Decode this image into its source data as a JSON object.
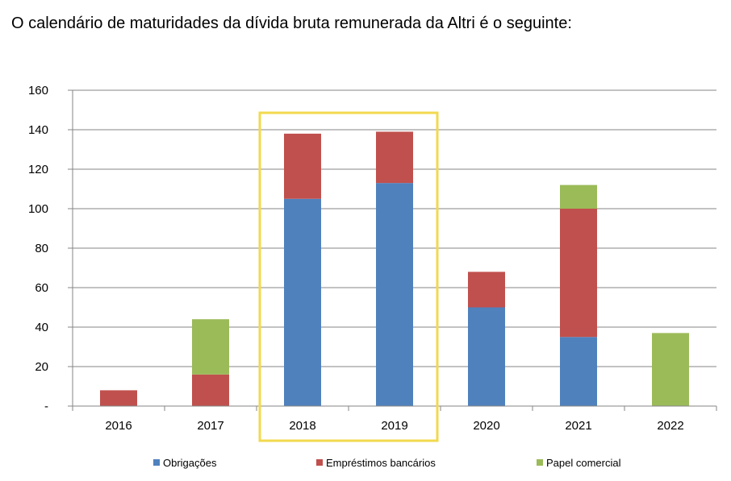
{
  "intro_text": "O calendário de maturidades da dívida bruta remunerada da Altri é o seguinte:",
  "chart_data": {
    "type": "bar",
    "stacked": true,
    "categories": [
      "2016",
      "2017",
      "2018",
      "2019",
      "2020",
      "2021",
      "2022"
    ],
    "series": [
      {
        "name": "Obrigações",
        "color": "#4f81bd",
        "values": [
          0,
          0,
          105,
          113,
          50,
          35,
          0
        ]
      },
      {
        "name": "Empréstimos bancários",
        "color": "#c0504d",
        "values": [
          8,
          16,
          33,
          26,
          18,
          65,
          0
        ]
      },
      {
        "name": "Papel comercial",
        "color": "#9bbb59",
        "values": [
          0,
          28,
          0,
          0,
          0,
          12,
          37
        ]
      }
    ],
    "ylim": [
      0,
      160
    ],
    "yticks": [
      0,
      20,
      40,
      60,
      80,
      100,
      120,
      140,
      160
    ],
    "ytick_labels": [
      "-",
      "20",
      "40",
      "60",
      "80",
      "100",
      "120",
      "140",
      "160"
    ],
    "grid": true,
    "legend": "bottom",
    "highlight": {
      "categories": [
        "2018",
        "2019"
      ],
      "color": "#f2d94e"
    }
  }
}
